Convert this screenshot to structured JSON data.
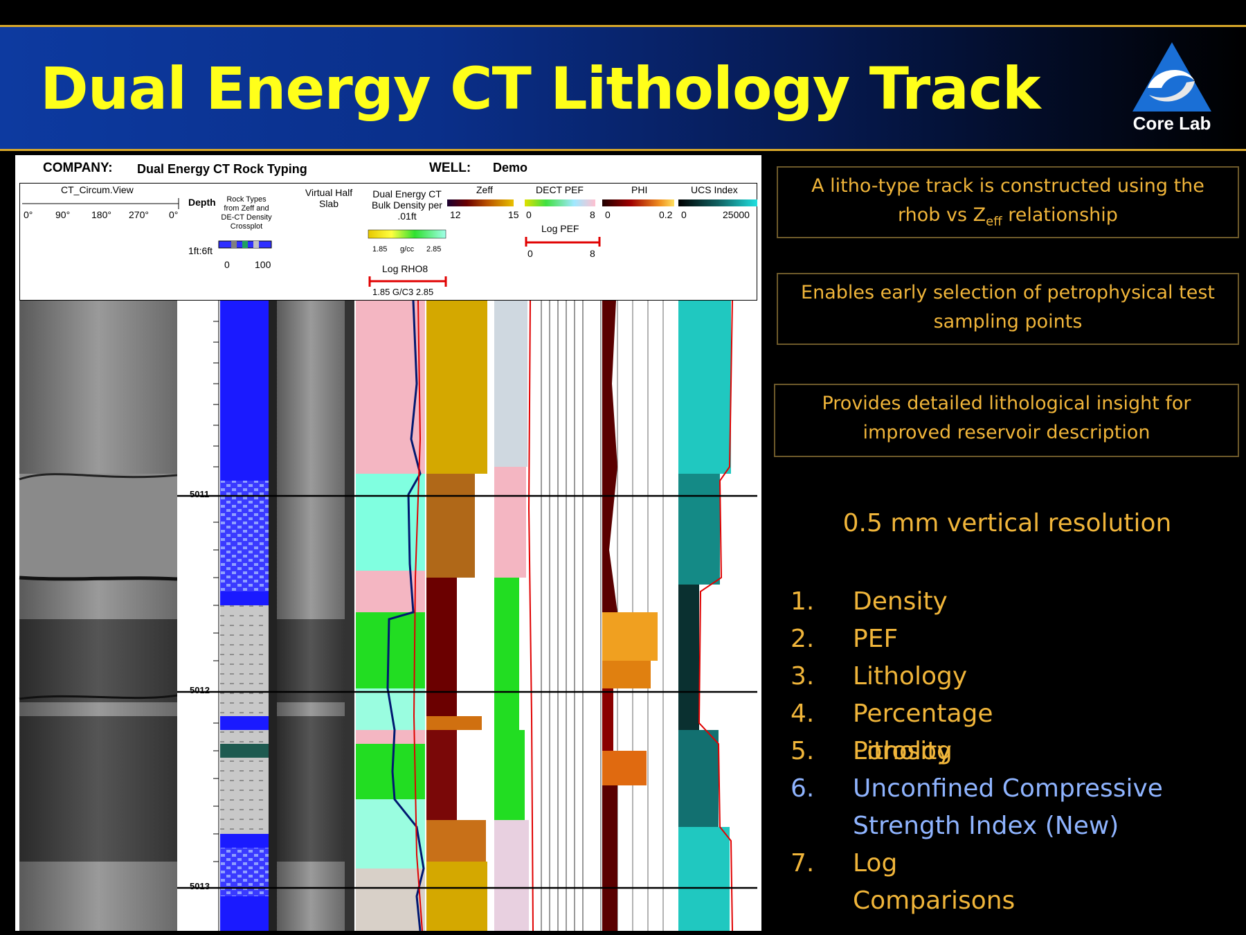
{
  "slide": {
    "title": "Dual Energy CT Lithology Track",
    "logo_text": "Core Lab",
    "logo_icon": "corelab-triangle-logo"
  },
  "log": {
    "company_label": "COMPANY:",
    "company_value": "Dual Energy CT Rock Typing",
    "well_label": "WELL:",
    "well_value": "Demo",
    "ct_circum_title": "CT_Circum.View",
    "ct_circum_ticks": [
      "0°",
      "90°",
      "180°",
      "270°",
      "0°"
    ],
    "depth_label": "Depth",
    "rock_types_label": "Rock Types from Zeff and DE-CT Density Crossplot",
    "scale_label": "1ft:6ft",
    "rock_scale_ticks": [
      "0",
      "100"
    ],
    "virtual_slab_label": "Virtual Half Slab",
    "bulk_density_label": "Dual Energy CT Bulk Density per .01ft",
    "density_scale": [
      "1.85",
      "g/cc",
      "2.85"
    ],
    "log_rhob_label": "Log RHO8",
    "log_rhob_scale": "1.85 G/C3 2.85",
    "zeff_label": "Zeff",
    "zeff_scale": [
      "12",
      "15"
    ],
    "dect_pef_label": "DECT PEF",
    "dect_pef_scale": [
      "0",
      "8"
    ],
    "log_pef_label": "Log PEF",
    "log_pef_scale": [
      "0",
      "8"
    ],
    "phi_label": "PHI",
    "phi_scale": [
      "0",
      "0.2"
    ],
    "ucs_label": "UCS Index",
    "ucs_scale": [
      "0",
      "25000"
    ],
    "depths": [
      "5011",
      "5012",
      "5013"
    ],
    "colors": {
      "rock_blue": "#1a1aff",
      "density_cyan": "#80ffe0",
      "density_green": "#22dd22",
      "density_pink": "#f4b6c2",
      "zeff_gold": "#d4a800",
      "zeff_maroon": "#6b0000",
      "phi_dark": "#5a0000",
      "phi_orange": "#f0a020",
      "ucs_teal": "#20c8c0",
      "curve_red": "#e00000",
      "curve_navy": "#001870"
    }
  },
  "bullets": [
    "A litho-type track is constructed using the rhob vs Zeff relationship",
    "Enables early selection of petrophysical test sampling points",
    "Provides detailed lithological insight for improved reservoir description"
  ],
  "resolution": "0.5 mm vertical resolution",
  "list": [
    {
      "num": "1.",
      "text": "Density",
      "color": "#f0b53a"
    },
    {
      "num": "2.",
      "text": "PEF",
      "color": "#f0b53a"
    },
    {
      "num": "3.",
      "text": "Lithology",
      "color": "#f0b53a"
    },
    {
      "num": "4.",
      "text": "Percentage Litholog",
      "color": "#f0b53a"
    },
    {
      "num": "5.",
      "text": "Porosity",
      "color": "#f0b53a"
    },
    {
      "num": "6.",
      "text": "Unconfined Compressive Strength Index (New)",
      "color": "#8fb4ff"
    },
    {
      "num": "7.",
      "text": "Log Comparisons",
      "color": "#f0b53a"
    }
  ]
}
